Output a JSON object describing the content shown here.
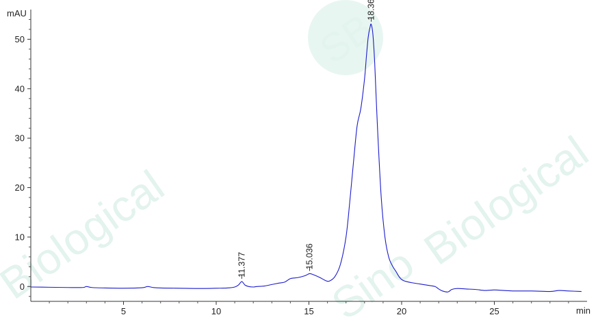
{
  "chart_data": {
    "type": "line",
    "xlabel": "min",
    "ylabel": "mAU",
    "xlim": [
      0,
      30
    ],
    "ylim": [
      -3,
      56
    ],
    "x_ticks": [
      5,
      10,
      15,
      20,
      25
    ],
    "y_ticks": [
      0,
      10,
      20,
      30,
      40,
      50
    ],
    "grid": false,
    "line_color": "#1a1acd",
    "watermark_color": "#e3f3ee",
    "series": [
      {
        "x": [
          0.0,
          1.0,
          2.0,
          2.8,
          3.0,
          3.3,
          4.0,
          5.0,
          6.0,
          6.3,
          6.6,
          7.0,
          8.0,
          9.0,
          10.0,
          10.6,
          11.0,
          11.2,
          11.38,
          11.55,
          11.75,
          12.0,
          12.2,
          12.6,
          13.0,
          13.4,
          13.7,
          14.0,
          14.4,
          14.8,
          15.04,
          15.3,
          15.6,
          15.9,
          16.1,
          16.4,
          16.7,
          17.0,
          17.2,
          17.4,
          17.6,
          17.8,
          18.0,
          18.1,
          18.2,
          18.3,
          18.36,
          18.45,
          18.55,
          18.7,
          18.9,
          19.1,
          19.3,
          19.5,
          19.7,
          19.9,
          20.1,
          20.5,
          21.0,
          21.5,
          21.8,
          22.0,
          22.2,
          22.5,
          22.7,
          23.0,
          23.5,
          24.0,
          24.5,
          25.0,
          25.5,
          26.0,
          27.0,
          28.0,
          28.5,
          29.0,
          29.7
        ],
        "y": [
          -0.1,
          -0.15,
          -0.2,
          -0.2,
          0.0,
          -0.2,
          -0.3,
          -0.35,
          -0.25,
          0.0,
          -0.2,
          -0.3,
          -0.35,
          -0.4,
          -0.35,
          -0.3,
          -0.1,
          0.3,
          1.0,
          0.3,
          0.0,
          -0.1,
          0.0,
          0.1,
          0.4,
          0.7,
          0.9,
          1.6,
          1.8,
          2.2,
          2.6,
          2.3,
          1.8,
          1.2,
          1.1,
          2.0,
          4.5,
          10.0,
          17.0,
          25.0,
          32.5,
          36.0,
          42.0,
          46.5,
          50.5,
          52.5,
          53.0,
          51.0,
          45.0,
          32.0,
          18.0,
          10.0,
          6.0,
          4.2,
          3.0,
          1.8,
          1.2,
          0.8,
          0.5,
          0.2,
          0.0,
          -0.5,
          -0.9,
          -1.1,
          -0.6,
          -0.4,
          -0.5,
          -0.6,
          -0.8,
          -0.7,
          -0.8,
          -0.9,
          -0.9,
          -1.0,
          -0.8,
          -0.9,
          -1.0
        ]
      }
    ],
    "peaks": [
      {
        "label": "11.377",
        "x": 11.377,
        "y": 1.0
      },
      {
        "label": "15.036",
        "x": 15.036,
        "y": 2.6
      },
      {
        "label": "18.360",
        "x": 18.36,
        "y": 53.0
      }
    ]
  },
  "watermark": {
    "text_left": "Biological",
    "text_right": "Biological",
    "text_center": "Sino",
    "logo_text": "SB"
  }
}
